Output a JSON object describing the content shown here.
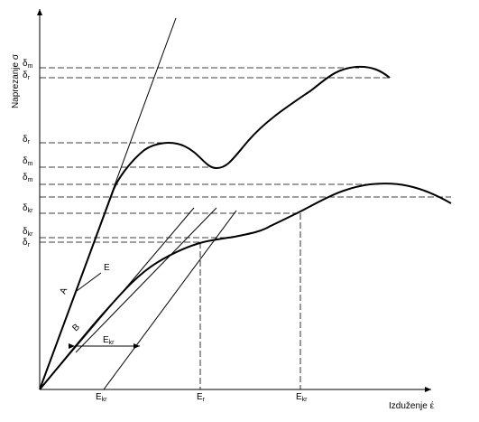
{
  "axes": {
    "y_label": "Naprezanje σ",
    "x_label": "Izduženje έ"
  },
  "y_markers": [
    {
      "symbol": "δ",
      "sub": "m"
    },
    {
      "symbol": "δ",
      "sub": "r"
    },
    {
      "symbol": "δ",
      "sub": "r"
    },
    {
      "symbol": "δ",
      "sub": "m"
    },
    {
      "symbol": "δ",
      "sub": "m"
    },
    {
      "symbol": "δ",
      "sub": "kr"
    },
    {
      "symbol": "δ",
      "sub": "kr"
    },
    {
      "symbol": "δ",
      "sub": "r"
    }
  ],
  "x_markers": [
    {
      "symbol": "E",
      "sub": "kr"
    },
    {
      "symbol": "E",
      "sub": "r"
    },
    {
      "symbol": "E",
      "sub": "kr"
    }
  ],
  "curve_labels": {
    "a": "A",
    "e": "E",
    "b": "B",
    "span": {
      "symbol": "E",
      "sub": "kr"
    }
  }
}
